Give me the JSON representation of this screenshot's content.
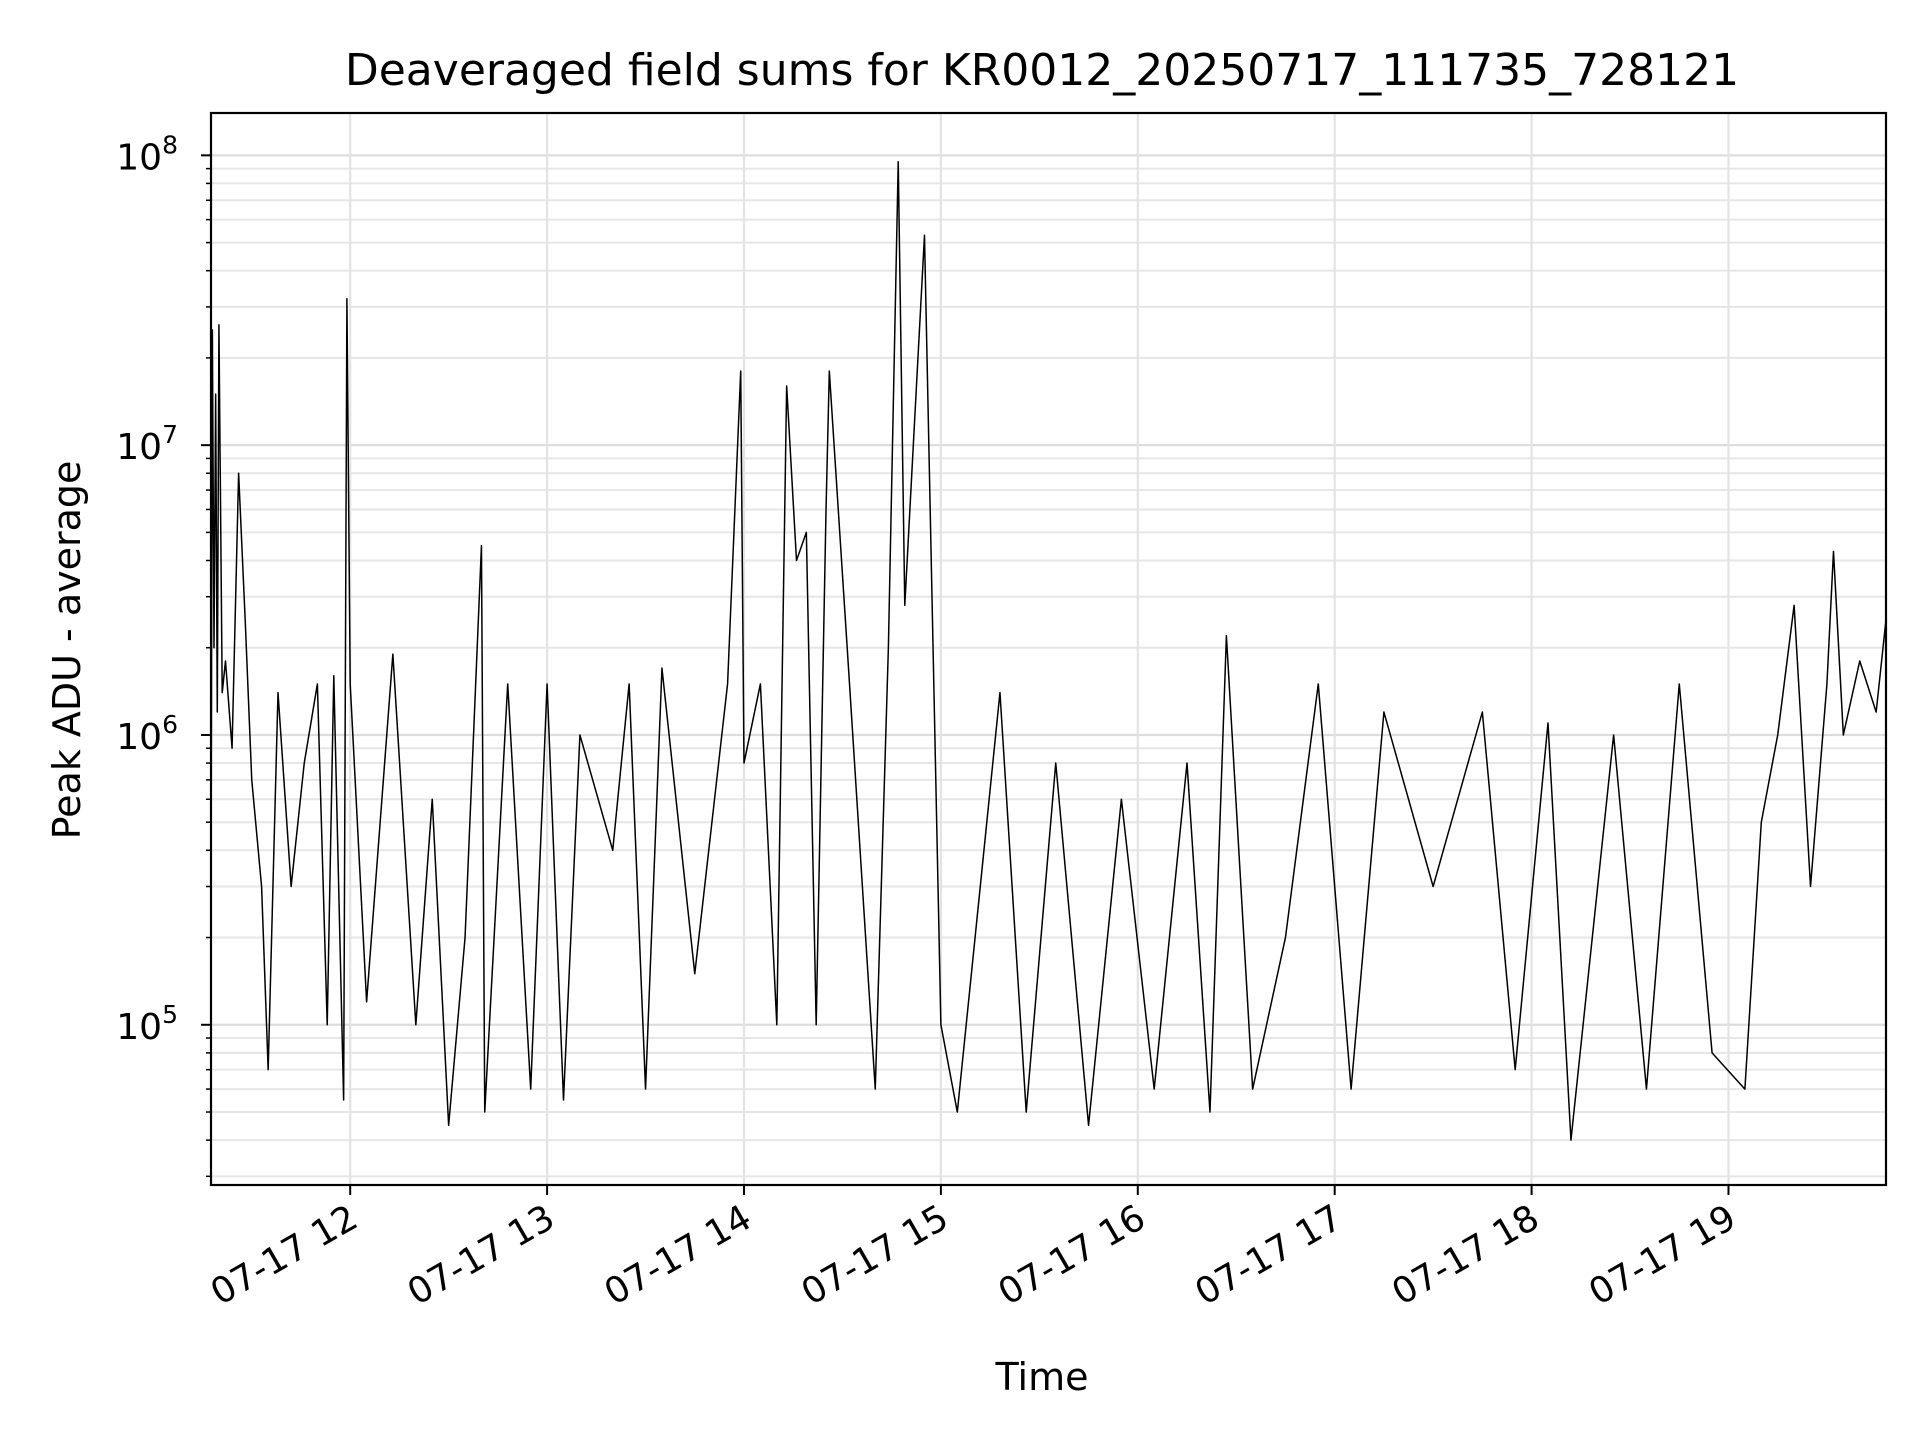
{
  "chart_data": {
    "type": "line",
    "title": "Deaveraged field sums for KR0012_20250717_111735_728121",
    "xlabel": "Time",
    "ylabel": "Peak ADU - average",
    "yscale": "log",
    "ylim": [
      28000,
      140000000
    ],
    "xlim": [
      "2025-07-17 11:17:35",
      "2025-07-17 19:48:00"
    ],
    "x_ticks": [
      {
        "t": "2025-07-17 12:00",
        "label": "07-17 12"
      },
      {
        "t": "2025-07-17 13:00",
        "label": "07-17 13"
      },
      {
        "t": "2025-07-17 14:00",
        "label": "07-17 14"
      },
      {
        "t": "2025-07-17 15:00",
        "label": "07-17 15"
      },
      {
        "t": "2025-07-17 16:00",
        "label": "07-17 16"
      },
      {
        "t": "2025-07-17 17:00",
        "label": "07-17 17"
      },
      {
        "t": "2025-07-17 18:00",
        "label": "07-17 18"
      },
      {
        "t": "2025-07-17 19:00",
        "label": "07-17 19"
      }
    ],
    "y_ticks": [
      {
        "value": 100000,
        "label": "10",
        "exp": "5"
      },
      {
        "value": 1000000,
        "label": "10",
        "exp": "6"
      },
      {
        "value": 10000000,
        "label": "10",
        "exp": "7"
      },
      {
        "value": 100000000,
        "label": "10",
        "exp": "8"
      }
    ],
    "grid": true,
    "line_color": "#000000",
    "series": [
      {
        "points": [
          [
            "2025-07-17 11:17:35",
            300000
          ],
          [
            "2025-07-17 11:18:00",
            25000000
          ],
          [
            "2025-07-17 11:18:30",
            2000000
          ],
          [
            "2025-07-17 11:19:00",
            15000000
          ],
          [
            "2025-07-17 11:19:30",
            1200000
          ],
          [
            "2025-07-17 11:20:00",
            26000000
          ],
          [
            "2025-07-17 11:21:00",
            1400000
          ],
          [
            "2025-07-17 11:22:00",
            1800000
          ],
          [
            "2025-07-17 11:24:00",
            900000
          ],
          [
            "2025-07-17 11:26:00",
            8000000
          ],
          [
            "2025-07-17 11:28:00",
            2500000
          ],
          [
            "2025-07-17 11:30:00",
            700000
          ],
          [
            "2025-07-17 11:33:00",
            300000
          ],
          [
            "2025-07-17 11:35:00",
            70000
          ],
          [
            "2025-07-17 11:38:00",
            1400000
          ],
          [
            "2025-07-17 11:42:00",
            300000
          ],
          [
            "2025-07-17 11:46:00",
            800000
          ],
          [
            "2025-07-17 11:50:00",
            1500000
          ],
          [
            "2025-07-17 11:53:00",
            100000
          ],
          [
            "2025-07-17 11:55:00",
            1600000
          ],
          [
            "2025-07-17 11:58:00",
            55000
          ],
          [
            "2025-07-17 11:59:00",
            32000000
          ],
          [
            "2025-07-17 12:00:00",
            1500000
          ],
          [
            "2025-07-17 12:05:00",
            120000
          ],
          [
            "2025-07-17 12:13:00",
            1900000
          ],
          [
            "2025-07-17 12:20:00",
            100000
          ],
          [
            "2025-07-17 12:25:00",
            600000
          ],
          [
            "2025-07-17 12:30:00",
            45000
          ],
          [
            "2025-07-17 12:35:00",
            200000
          ],
          [
            "2025-07-17 12:40:00",
            4500000
          ],
          [
            "2025-07-17 12:41:00",
            50000
          ],
          [
            "2025-07-17 12:48:00",
            1500000
          ],
          [
            "2025-07-17 12:55:00",
            60000
          ],
          [
            "2025-07-17 13:00:00",
            1500000
          ],
          [
            "2025-07-17 13:05:00",
            55000
          ],
          [
            "2025-07-17 13:10:00",
            1000000
          ],
          [
            "2025-07-17 13:20:00",
            400000
          ],
          [
            "2025-07-17 13:25:00",
            1500000
          ],
          [
            "2025-07-17 13:30:00",
            60000
          ],
          [
            "2025-07-17 13:35:00",
            1700000
          ],
          [
            "2025-07-17 13:45:00",
            150000
          ],
          [
            "2025-07-17 13:55:00",
            1500000
          ],
          [
            "2025-07-17 13:59:00",
            18000000
          ],
          [
            "2025-07-17 14:00:00",
            800000
          ],
          [
            "2025-07-17 14:05:00",
            1500000
          ],
          [
            "2025-07-17 14:10:00",
            100000
          ],
          [
            "2025-07-17 14:13:00",
            16000000
          ],
          [
            "2025-07-17 14:16:00",
            4000000
          ],
          [
            "2025-07-17 14:19:00",
            5000000
          ],
          [
            "2025-07-17 14:22:00",
            100000
          ],
          [
            "2025-07-17 14:25:00",
            6000000
          ],
          [
            "2025-07-17 14:26:00",
            18000000
          ],
          [
            "2025-07-17 14:32:00",
            1600000
          ],
          [
            "2025-07-17 14:40:00",
            60000
          ],
          [
            "2025-07-17 14:44:00",
            2000000
          ],
          [
            "2025-07-17 14:47:00",
            95000000
          ],
          [
            "2025-07-17 14:49:00",
            2800000
          ],
          [
            "2025-07-17 14:55:00",
            53000000
          ],
          [
            "2025-07-17 15:00:00",
            100000
          ],
          [
            "2025-07-17 15:05:00",
            50000
          ],
          [
            "2025-07-17 15:12:00",
            300000
          ],
          [
            "2025-07-17 15:18:00",
            1400000
          ],
          [
            "2025-07-17 15:26:00",
            50000
          ],
          [
            "2025-07-17 15:35:00",
            800000
          ],
          [
            "2025-07-17 15:45:00",
            45000
          ],
          [
            "2025-07-17 15:55:00",
            600000
          ],
          [
            "2025-07-17 16:05:00",
            60000
          ],
          [
            "2025-07-17 16:15:00",
            800000
          ],
          [
            "2025-07-17 16:22:00",
            50000
          ],
          [
            "2025-07-17 16:27:00",
            2200000
          ],
          [
            "2025-07-17 16:35:00",
            60000
          ],
          [
            "2025-07-17 16:45:00",
            200000
          ],
          [
            "2025-07-17 16:55:00",
            1500000
          ],
          [
            "2025-07-17 17:05:00",
            60000
          ],
          [
            "2025-07-17 17:15:00",
            1200000
          ],
          [
            "2025-07-17 17:30:00",
            300000
          ],
          [
            "2025-07-17 17:45:00",
            1200000
          ],
          [
            "2025-07-17 17:55:00",
            70000
          ],
          [
            "2025-07-17 18:05:00",
            1100000
          ],
          [
            "2025-07-17 18:12:00",
            40000
          ],
          [
            "2025-07-17 18:25:00",
            1000000
          ],
          [
            "2025-07-17 18:35:00",
            60000
          ],
          [
            "2025-07-17 18:45:00",
            1500000
          ],
          [
            "2025-07-17 18:55:00",
            80000
          ],
          [
            "2025-07-17 19:05:00",
            60000
          ],
          [
            "2025-07-17 19:10:00",
            500000
          ],
          [
            "2025-07-17 19:15:00",
            1000000
          ],
          [
            "2025-07-17 19:20:00",
            2800000
          ],
          [
            "2025-07-17 19:25:00",
            300000
          ],
          [
            "2025-07-17 19:30:00",
            1500000
          ],
          [
            "2025-07-17 19:32:00",
            4300000
          ],
          [
            "2025-07-17 19:35:00",
            1000000
          ],
          [
            "2025-07-17 19:40:00",
            1800000
          ],
          [
            "2025-07-17 19:45:00",
            1200000
          ],
          [
            "2025-07-17 19:48:00",
            2500000
          ]
        ]
      }
    ]
  }
}
